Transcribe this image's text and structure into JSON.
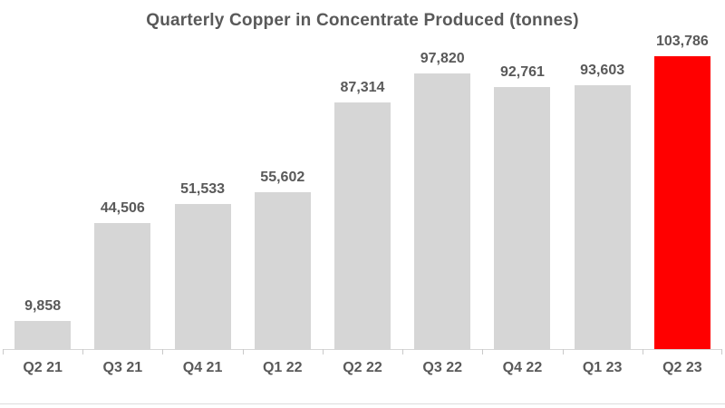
{
  "page": {
    "background": "#ffffff",
    "bottom_strip_color": "#ececec"
  },
  "chart_data": {
    "type": "bar",
    "title": "Quarterly Copper in Concentrate Produced (tonnes)",
    "categories": [
      "Q2 21",
      "Q3 21",
      "Q4 21",
      "Q1 22",
      "Q2 22",
      "Q3 22",
      "Q4 22",
      "Q1 23",
      "Q2 23"
    ],
    "values": [
      9858,
      44506,
      51533,
      55602,
      87314,
      97820,
      92761,
      93603,
      103786
    ],
    "value_labels": [
      "9,858",
      "44,506",
      "51,533",
      "55,602",
      "87,314",
      "97,820",
      "92,761",
      "93,603",
      "103,786"
    ],
    "highlight_index": 8,
    "xlabel": "",
    "ylabel": "",
    "ylim": [
      0,
      103786
    ],
    "grid": false,
    "legend": "none",
    "colors": {
      "bar_default": "#d6d6d6",
      "bar_highlight": "#ff0000",
      "label_text": "#595959",
      "axis_line": "#d6d6d6",
      "tick": "#c9c9c9"
    }
  }
}
